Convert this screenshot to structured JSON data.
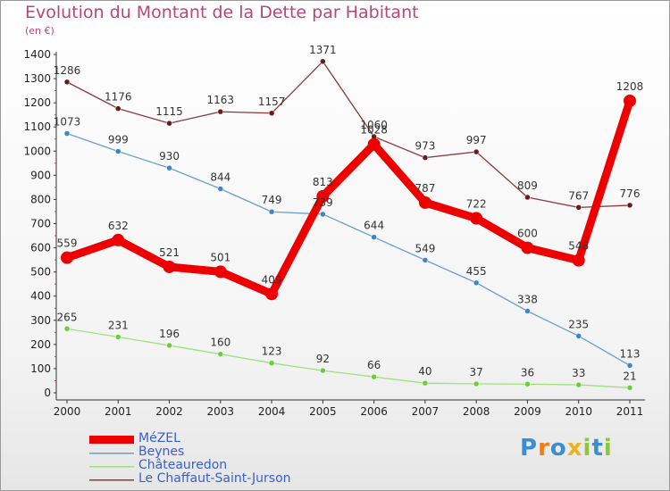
{
  "header": {
    "title": "Evolution du Montant de la Dette par Habitant",
    "subtitle": "(en €)"
  },
  "logo": {
    "text": "Proxiti",
    "colors": [
      "#3b8fd0",
      "#f07d1a",
      "#3b8fd0",
      "#e8b422",
      "#8cc63f",
      "#3b8fd0",
      "#8cc63f"
    ]
  },
  "chart_data": {
    "type": "line",
    "title": "Evolution du Montant de la Dette par Habitant",
    "subtitle": "(en €)",
    "xlabel": "",
    "ylabel": "",
    "x": [
      "2000",
      "2001",
      "2002",
      "2003",
      "2004",
      "2005",
      "2006",
      "2007",
      "2008",
      "2009",
      "2010",
      "2011"
    ],
    "ylim": [
      0,
      1400
    ],
    "yticks": [
      0,
      100,
      200,
      300,
      400,
      500,
      600,
      700,
      800,
      900,
      1000,
      1100,
      1200,
      1300,
      1400
    ],
    "grid": false,
    "legend_position": "bottom-left",
    "series": [
      {
        "name": "MéZEL",
        "color": "#ee0000",
        "point_color": "#ee0000",
        "bold": true,
        "values": [
          559,
          632,
          521,
          501,
          409,
          813,
          1028,
          787,
          722,
          600,
          548,
          1208
        ],
        "labels": [
          "559",
          "632",
          "521",
          "501",
          "409",
          "813",
          "1028",
          "787",
          "722",
          "600",
          "548",
          "1208"
        ]
      },
      {
        "name": "Beynes",
        "color": "#6a9ed4",
        "point_color": "#3a86cc",
        "bold": false,
        "values": [
          1073,
          999,
          930,
          844,
          749,
          739,
          644,
          549,
          455,
          338,
          235,
          113
        ],
        "labels": [
          "1073",
          "999",
          "930",
          "844",
          "749",
          "739",
          "644",
          "549",
          "455",
          "338",
          "235",
          "113"
        ]
      },
      {
        "name": "Châteauredon",
        "color": "#9ee07a",
        "point_color": "#6ccd3c",
        "bold": false,
        "values": [
          265,
          231,
          196,
          160,
          123,
          92,
          66,
          40,
          37,
          36,
          33,
          21
        ],
        "labels": [
          "265",
          "231",
          "196",
          "160",
          "123",
          "92",
          "66",
          "40",
          "37",
          "36",
          "33",
          "21"
        ]
      },
      {
        "name": "Le Chaffaut-Saint-Jurson",
        "color": "#8a3a3a",
        "point_color": "#6a1a1a",
        "bold": false,
        "values": [
          1286,
          1176,
          1115,
          1163,
          1157,
          1371,
          1060,
          973,
          997,
          809,
          767,
          776
        ],
        "labels": [
          "1286",
          "1176",
          "1115",
          "1163",
          "1157",
          "1371",
          "1060",
          "973",
          "997",
          "809",
          "767",
          "776"
        ]
      }
    ]
  }
}
